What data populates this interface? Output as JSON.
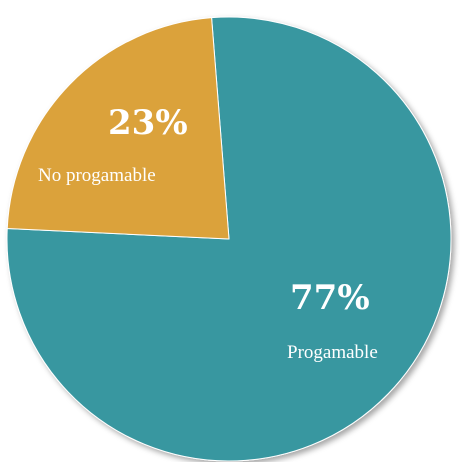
{
  "chart_data": {
    "type": "pie",
    "slices": [
      {
        "label": "Progamable",
        "value": 77,
        "display": "77%",
        "color": "#3797a0"
      },
      {
        "label": "No progamable",
        "value": 23,
        "display": "23%",
        "color": "#dba23b"
      }
    ],
    "start_angle_deg": -4.5,
    "direction": "clockwise",
    "legend": "none",
    "title": ""
  }
}
